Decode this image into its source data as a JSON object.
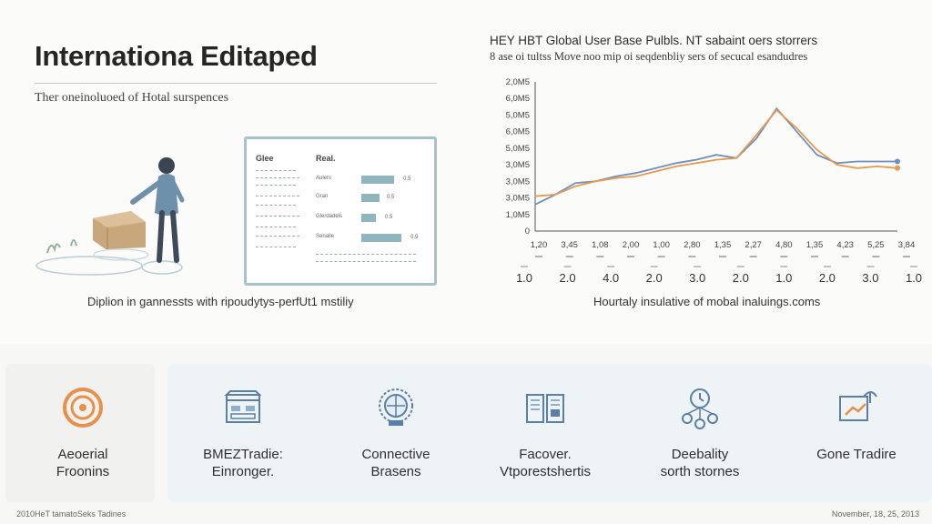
{
  "header": {
    "title": "Internationa Editaped",
    "subtitle": "Ther oneinoluoed of Hotal surspences"
  },
  "illustration_caption": "Diplion in gannessts with ripoudytys-perfUt1 mstiliy",
  "info_panel": {
    "col1_head": "Glee",
    "col2_head": "Real.",
    "rows": [
      {
        "key": "Aulers",
        "value": "0.5",
        "level": 0.85
      },
      {
        "key": "Gran",
        "value": "0.5",
        "level": 0.5
      },
      {
        "key": "Glerdadels",
        "value": "0.5",
        "level": 0.4
      },
      {
        "key": "Senalle",
        "value": "0.9",
        "level": 1.0
      }
    ]
  },
  "chart": {
    "title": "HEY HBT Global User Base Pulbls. NT sabaint oers storrers",
    "subtitle": "8 ase oi tultss Move noo mip oi seqdenbliy sers of secucal esandudres",
    "caption": "Hourtaly insulative of mobal inaluings.coms"
  },
  "chart_data": {
    "type": "line",
    "yticks": [
      "2,0M5",
      "6,0M5",
      "5,0M5",
      "6,0M5",
      "5,0M5",
      "3,0M5",
      "3,0M5",
      "3,0M5",
      "1,0M5",
      "0"
    ],
    "xticks_row1": [
      "1,20",
      "3,45",
      "1,08",
      "2,00",
      "1,00",
      "2,80",
      "1,35",
      "2,27",
      "4,80",
      "1,35",
      "4,23",
      "5,25",
      "3,84"
    ],
    "xticks_row2": [
      "1.0",
      "2.0",
      "4.0",
      "2.0",
      "3.0",
      "2.0",
      "1.0",
      "2.0",
      "3.0",
      "1.0"
    ],
    "ylim": [
      0,
      9
    ],
    "series": [
      {
        "color": "#6f8fbf",
        "x": [
          0,
          0.5,
          1,
          1.5,
          2,
          2.5,
          3,
          3.5,
          4,
          4.5,
          5,
          5.5,
          6,
          6.5,
          7,
          7.5,
          8,
          8.5,
          9
        ],
        "y": [
          1.6,
          2.2,
          2.9,
          3.0,
          3.3,
          3.5,
          3.8,
          4.1,
          4.3,
          4.6,
          4.4,
          5.6,
          7.4,
          6.0,
          4.6,
          4.1,
          4.2,
          4.2,
          4.2
        ]
      },
      {
        "color": "#e69a4d",
        "x": [
          0,
          0.5,
          1,
          1.5,
          2,
          2.5,
          3,
          3.5,
          4,
          4.5,
          5,
          5.5,
          6,
          6.5,
          7,
          7.5,
          8,
          8.5,
          9
        ],
        "y": [
          2.1,
          2.2,
          2.7,
          3.0,
          3.2,
          3.3,
          3.6,
          3.9,
          4.1,
          4.3,
          4.4,
          5.8,
          7.3,
          6.2,
          4.9,
          4.0,
          3.8,
          3.9,
          3.8
        ]
      }
    ]
  },
  "features": [
    {
      "icon": "target-icon",
      "line1": "Aeoerial",
      "line2": "Froonins"
    },
    {
      "icon": "storefront-icon",
      "line1": "BMEZTradie:",
      "line2": "Einronger."
    },
    {
      "icon": "globe-badge-icon",
      "line1": "Connective",
      "line2": "Brasens"
    },
    {
      "icon": "book-icon",
      "line1": "Facover.",
      "line2": "Vtporestshertis"
    },
    {
      "icon": "network-icon",
      "line1": "Deebality",
      "line2": "sorth stornes"
    },
    {
      "icon": "trade-icon",
      "line1": "Gone Tradire",
      "line2": ""
    }
  ],
  "footer": {
    "left": "2010HeT tamatoSeks Tadines",
    "right": "November, 18, 25, 2013"
  },
  "colors": {
    "accent_orange": "#e8904a",
    "accent_blue": "#5b7fa8",
    "panel_border": "#a6c4c8"
  }
}
